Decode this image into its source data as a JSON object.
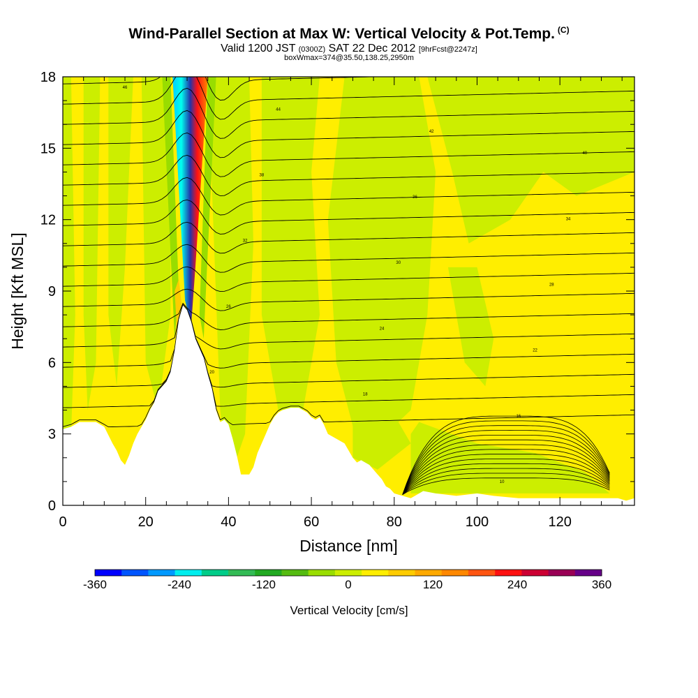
{
  "header": {
    "title": "Wind-Parallel Section at Max W: Vertical Velocity & Pot.Temp.",
    "copyright_mark": "(C)",
    "valid_line_a": "Valid 1200 JST",
    "valid_line_b": "(0300Z)",
    "valid_line_c": "SAT 22 Dec 2012",
    "valid_line_d": "[9hrFcst@2247z]",
    "box_line": "boxWmax=374@35.50,138.25,2950m"
  },
  "chart_data": {
    "type": "heatmap",
    "xlabel": "Distance [nm]",
    "ylabel": "Height [Kft MSL]",
    "xlim": [
      0,
      138
    ],
    "ylim": [
      0,
      18
    ],
    "xticks": [
      0,
      20,
      40,
      60,
      80,
      100,
      120
    ],
    "yticks": [
      0,
      3,
      6,
      9,
      12,
      15,
      18
    ],
    "grid": false,
    "colorbar": {
      "label": "Vertical Velocity [cm/s]",
      "ticks": [
        -360,
        -240,
        -120,
        0,
        120,
        240,
        360
      ],
      "range": [
        -360,
        360
      ],
      "colors": [
        "#0000ff",
        "#0055ff",
        "#0099ff",
        "#00eeee",
        "#00cc88",
        "#33bb55",
        "#22aa22",
        "#55bb11",
        "#99dd00",
        "#ccee00",
        "#ffee00",
        "#ffcc00",
        "#ffaa00",
        "#ff8800",
        "#ff5511",
        "#ff1111",
        "#cc0033",
        "#990055",
        "#660088"
      ]
    },
    "terrain": [
      [
        0,
        3.2
      ],
      [
        2,
        3.3
      ],
      [
        4,
        3.5
      ],
      [
        6,
        3.5
      ],
      [
        8,
        3.5
      ],
      [
        10,
        3.3
      ],
      [
        12,
        2.6
      ],
      [
        13,
        2.3
      ],
      [
        14,
        1.9
      ],
      [
        15,
        1.7
      ],
      [
        16,
        2.1
      ],
      [
        17,
        2.6
      ],
      [
        18,
        3.0
      ],
      [
        19,
        3.3
      ],
      [
        20,
        3.6
      ],
      [
        21,
        4.0
      ],
      [
        22,
        4.3
      ],
      [
        23,
        4.8
      ],
      [
        25,
        5.2
      ],
      [
        26,
        5.6
      ],
      [
        27,
        6.5
      ],
      [
        28,
        7.8
      ],
      [
        29,
        8.4
      ],
      [
        30,
        8.2
      ],
      [
        31,
        7.7
      ],
      [
        32,
        7.0
      ],
      [
        33,
        6.6
      ],
      [
        34,
        6.2
      ],
      [
        35,
        5.5
      ],
      [
        36,
        4.9
      ],
      [
        37,
        4.0
      ],
      [
        38,
        3.5
      ],
      [
        39,
        3.6
      ],
      [
        40,
        3.4
      ],
      [
        41,
        2.8
      ],
      [
        42,
        2.1
      ],
      [
        43,
        1.3
      ],
      [
        45,
        1.3
      ],
      [
        46,
        1.6
      ],
      [
        47,
        2.2
      ],
      [
        48,
        2.6
      ],
      [
        49,
        3.0
      ],
      [
        50,
        3.4
      ],
      [
        51,
        3.7
      ],
      [
        52,
        3.9
      ],
      [
        53,
        4.0
      ],
      [
        55,
        4.1
      ],
      [
        57,
        4.1
      ],
      [
        59,
        3.9
      ],
      [
        60,
        3.7
      ],
      [
        61,
        3.6
      ],
      [
        62,
        3.7
      ],
      [
        63,
        3.4
      ],
      [
        64,
        3.0
      ],
      [
        66,
        2.8
      ],
      [
        68,
        2.6
      ],
      [
        69,
        2.3
      ],
      [
        70,
        2.0
      ],
      [
        71,
        1.8
      ],
      [
        72,
        1.9
      ],
      [
        74,
        1.7
      ],
      [
        76,
        1.3
      ],
      [
        77,
        1.1
      ],
      [
        78,
        0.8
      ],
      [
        79,
        0.7
      ],
      [
        80,
        0.5
      ],
      [
        82,
        0.4
      ],
      [
        84,
        0.3
      ],
      [
        85,
        0.4
      ],
      [
        87,
        0.6
      ],
      [
        90,
        0.5
      ],
      [
        95,
        0.4
      ],
      [
        100,
        0.5
      ],
      [
        104,
        0.4
      ],
      [
        110,
        0.3
      ],
      [
        120,
        0.3
      ],
      [
        130,
        0.3
      ],
      [
        132,
        0.3
      ],
      [
        134,
        0.3
      ],
      [
        136,
        0.2
      ],
      [
        138,
        0.3
      ]
    ],
    "updraft_core": {
      "x": 32,
      "value": 374,
      "unit": "cm/s"
    },
    "isentrope_labels": [
      "46",
      "44",
      "42",
      "40",
      "38",
      "36",
      "34",
      "32",
      "30",
      "28",
      "26",
      "24",
      "22",
      "20",
      "18",
      "16",
      "14",
      "12",
      "10"
    ]
  }
}
